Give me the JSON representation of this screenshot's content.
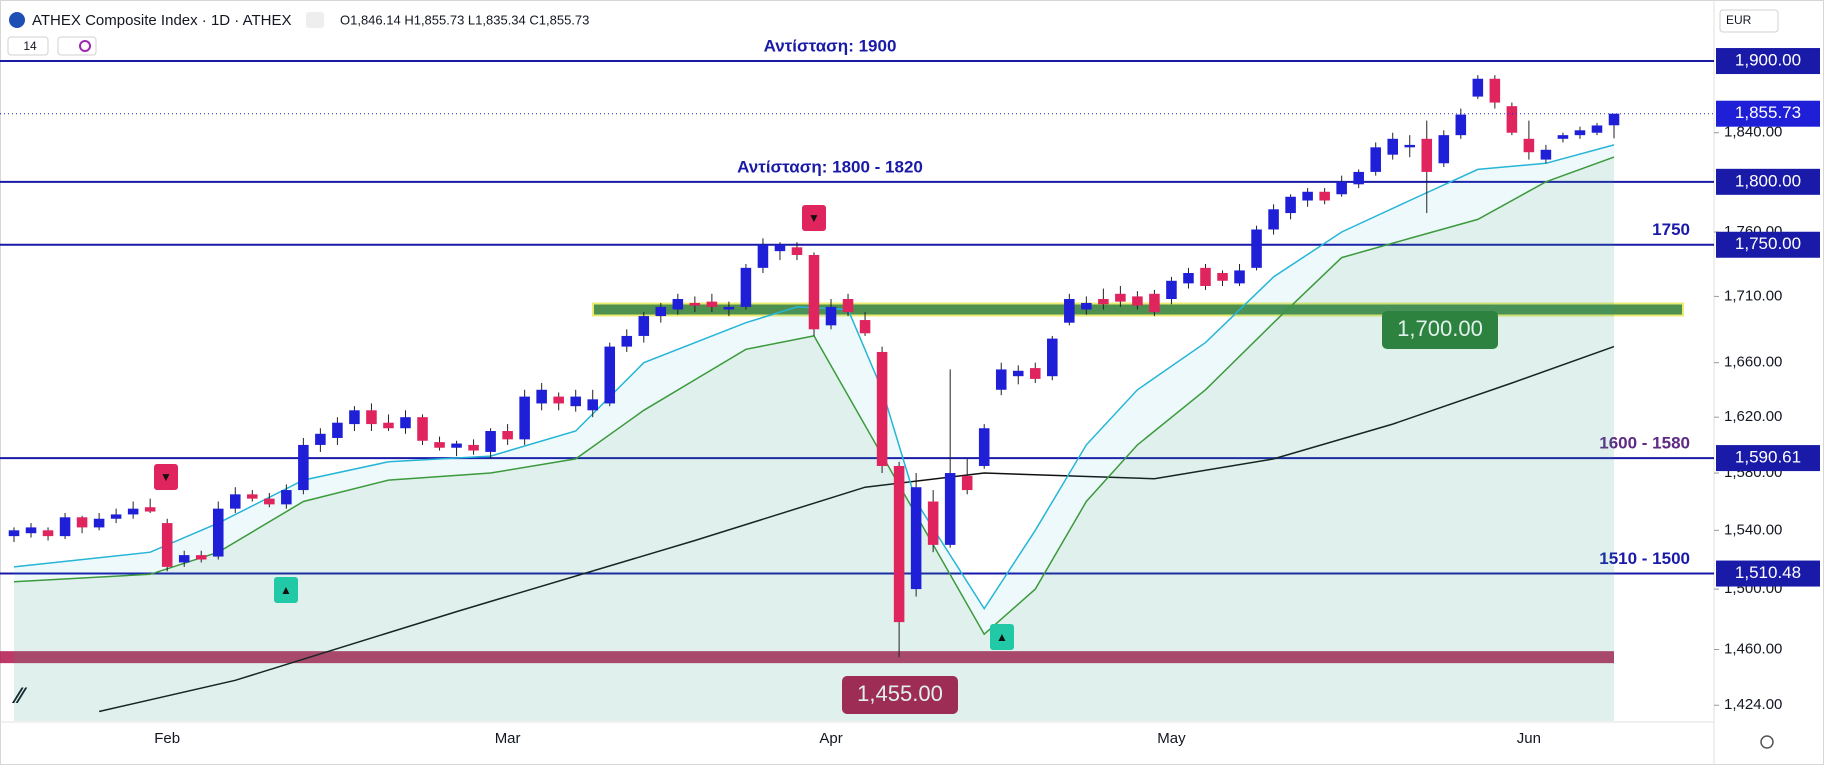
{
  "chart_data": {
    "type": "candlestick",
    "title": "ATHEX Composite Index · 1D · ATHEX",
    "ohlc_text": "O1,846.14 H1,855.73 L1,835.34 C1,855.73",
    "interval_badge": "14",
    "currency": "EUR",
    "up_color": "#1f1fd8",
    "down_color": "#e0245e",
    "log_scale": true,
    "ylim": [
      1414,
      1924
    ],
    "yticks": [
      {
        "value": 1424,
        "label": "1,424.00"
      },
      {
        "value": 1460,
        "label": "1,460.00"
      },
      {
        "value": 1500,
        "label": "1,500.00"
      },
      {
        "value": 1540,
        "label": "1,540.00"
      },
      {
        "value": 1580,
        "label": "1,580.00"
      },
      {
        "value": 1620,
        "label": "1,620.00"
      },
      {
        "value": 1660,
        "label": "1,660.00"
      },
      {
        "value": 1710,
        "label": "1,710.00"
      },
      {
        "value": 1760,
        "label": "1,760.00"
      },
      {
        "value": 1840,
        "label": "1,840.00"
      }
    ],
    "categories": [
      null,
      null,
      null,
      null,
      null,
      null,
      null,
      null,
      null,
      "Feb",
      null,
      null,
      null,
      null,
      null,
      null,
      null,
      null,
      null,
      null,
      null,
      null,
      null,
      null,
      null,
      null,
      null,
      null,
      null,
      "Mar",
      null,
      null,
      null,
      null,
      null,
      null,
      null,
      null,
      null,
      null,
      null,
      null,
      null,
      null,
      null,
      null,
      null,
      null,
      "Apr",
      null,
      null,
      null,
      null,
      null,
      null,
      null,
      null,
      null,
      null,
      null,
      null,
      null,
      null,
      null,
      null,
      null,
      null,
      null,
      "May",
      null,
      null,
      null,
      null,
      null,
      null,
      null,
      null,
      null,
      null,
      null,
      null,
      null,
      null,
      null,
      null,
      null,
      null,
      null,
      null,
      "Jun",
      null,
      null,
      null,
      null,
      null
    ],
    "open": [
      1536,
      1538,
      1540,
      1536,
      1549,
      1542,
      1548,
      1551,
      1556,
      1545,
      1518,
      1523,
      1522,
      1555,
      1565,
      1562,
      1558,
      1568,
      1600,
      1605,
      1615,
      1625,
      1616,
      1612,
      1620,
      1602,
      1598,
      1600,
      1595,
      1610,
      1604,
      1630,
      1635,
      1628,
      1625,
      1630,
      1672,
      1680,
      1695,
      1700,
      1705,
      1706,
      1700,
      1702,
      1732,
      1745,
      1748,
      1742,
      1688,
      1708,
      1692,
      1668,
      1585,
      1500,
      1560,
      1530,
      1578,
      1585,
      1640,
      1650,
      1656,
      1650,
      1690,
      1700,
      1708,
      1712,
      1710,
      1712,
      1708,
      1720,
      1732,
      1728,
      1720,
      1732,
      1762,
      1775,
      1785,
      1792,
      1790,
      1798,
      1808,
      1822,
      1828,
      1835,
      1815,
      1838,
      1870,
      1885,
      1862,
      1835,
      1818,
      1835,
      1838,
      1840,
      1846.14
    ],
    "high": [
      1542,
      1545,
      1542,
      1552,
      1550,
      1552,
      1555,
      1560,
      1562,
      1548,
      1526,
      1526,
      1560,
      1570,
      1568,
      1566,
      1572,
      1605,
      1612,
      1620,
      1628,
      1630,
      1622,
      1625,
      1622,
      1606,
      1603,
      1604,
      1612,
      1615,
      1640,
      1645,
      1638,
      1640,
      1640,
      1675,
      1685,
      1698,
      1705,
      1712,
      1710,
      1712,
      1706,
      1735,
      1755,
      1752,
      1752,
      1744,
      1708,
      1712,
      1698,
      1672,
      1588,
      1580,
      1568,
      1655,
      1590,
      1615,
      1660,
      1658,
      1660,
      1680,
      1712,
      1710,
      1716,
      1718,
      1714,
      1715,
      1725,
      1732,
      1735,
      1730,
      1735,
      1765,
      1782,
      1790,
      1795,
      1795,
      1805,
      1810,
      1832,
      1840,
      1838,
      1850,
      1842,
      1860,
      1888,
      1888,
      1865,
      1850,
      1830,
      1840,
      1845,
      1848,
      1855.73
    ],
    "low": [
      1532,
      1535,
      1533,
      1534,
      1538,
      1540,
      1545,
      1548,
      1552,
      1512,
      1515,
      1518,
      1520,
      1552,
      1560,
      1556,
      1555,
      1565,
      1595,
      1600,
      1610,
      1610,
      1610,
      1608,
      1600,
      1596,
      1592,
      1593,
      1590,
      1600,
      1600,
      1625,
      1625,
      1624,
      1620,
      1628,
      1668,
      1675,
      1690,
      1696,
      1698,
      1698,
      1695,
      1700,
      1728,
      1738,
      1738,
      1680,
      1685,
      1695,
      1680,
      1580,
      1455,
      1495,
      1525,
      1528,
      1565,
      1583,
      1636,
      1644,
      1645,
      1647,
      1688,
      1696,
      1700,
      1702,
      1700,
      1695,
      1704,
      1716,
      1715,
      1718,
      1718,
      1730,
      1758,
      1770,
      1780,
      1782,
      1788,
      1795,
      1805,
      1818,
      1820,
      1775,
      1812,
      1835,
      1868,
      1860,
      1838,
      1818,
      1815,
      1832,
      1835,
      1838,
      1835.34
    ],
    "close": [
      1540,
      1542,
      1536,
      1549,
      1542,
      1548,
      1551,
      1555,
      1553,
      1515,
      1523,
      1520,
      1555,
      1565,
      1562,
      1558,
      1568,
      1600,
      1608,
      1616,
      1625,
      1615,
      1612,
      1620,
      1603,
      1598,
      1601,
      1596,
      1610,
      1604,
      1635,
      1640,
      1630,
      1635,
      1633,
      1672,
      1680,
      1695,
      1702,
      1708,
      1703,
      1702,
      1702,
      1732,
      1750,
      1750,
      1742,
      1685,
      1702,
      1698,
      1682,
      1585,
      1478,
      1570,
      1530,
      1580,
      1568,
      1612,
      1655,
      1654,
      1648,
      1678,
      1708,
      1705,
      1704,
      1706,
      1703,
      1698,
      1722,
      1728,
      1718,
      1722,
      1730,
      1762,
      1778,
      1788,
      1792,
      1785,
      1800,
      1808,
      1828,
      1835,
      1830,
      1808,
      1838,
      1855,
      1885,
      1865,
      1840,
      1824,
      1826,
      1838,
      1842,
      1846,
      1855.73
    ],
    "overlays": [
      {
        "color": "#111111",
        "x": [
          5,
          13,
          26,
          40,
          50,
          57,
          67,
          74,
          81,
          88,
          94
        ],
        "values": [
          1420,
          1440,
          1485,
          1533,
          1570,
          1580,
          1576,
          1590,
          1615,
          1645,
          1672
        ]
      },
      {
        "color": "#26b5d6",
        "x": [
          0,
          8,
          12,
          17,
          22,
          28,
          33,
          37,
          43,
          46,
          49,
          51,
          53,
          57,
          60,
          63,
          66,
          70,
          74,
          78,
          82,
          86,
          90,
          94
        ],
        "values": [
          1515,
          1525,
          1545,
          1575,
          1588,
          1592,
          1610,
          1660,
          1690,
          1702,
          1700,
          1640,
          1560,
          1487,
          1540,
          1600,
          1640,
          1675,
          1725,
          1760,
          1785,
          1810,
          1815,
          1830
        ]
      },
      {
        "color": "#3c9a3c",
        "x": [
          0,
          8,
          12,
          17,
          22,
          28,
          33,
          37,
          43,
          47,
          57,
          60,
          63,
          66,
          70,
          74,
          78,
          82,
          86,
          90,
          94
        ],
        "values": [
          1505,
          1510,
          1525,
          1560,
          1575,
          1580,
          1590,
          1625,
          1670,
          1680,
          1470,
          1500,
          1560,
          1600,
          1640,
          1690,
          1740,
          1755,
          1770,
          1800,
          1820
        ]
      }
    ],
    "levels": [
      {
        "value": 1900,
        "label": "1,900.00",
        "note": "Αντίσταση: 1900",
        "color": "#1a1aa8"
      },
      {
        "value": 1800,
        "label": "1,800.00",
        "note": "Αντίσταση: 1800 - 1820",
        "color": "#1a1aa8"
      },
      {
        "value": 1750,
        "label": "1,750.00",
        "note": "1750",
        "color": "#1a1aa8"
      },
      {
        "value": 1590.61,
        "label": "1,590.61",
        "note": "1600 - 1580",
        "color": "#1a1aa8"
      },
      {
        "value": 1510.48,
        "label": "1,510.48",
        "note": "1510 - 1500",
        "color": "#1a1aa8"
      }
    ],
    "bands": [
      {
        "value": 1700,
        "label": "1,700.00",
        "color": "#2e7d32"
      },
      {
        "value": 1455,
        "label": "1,455.00",
        "color": "#b2184d"
      }
    ],
    "last_price": {
      "value": 1855.73,
      "label": "1,855.73",
      "color": "#1f1fd8"
    }
  }
}
